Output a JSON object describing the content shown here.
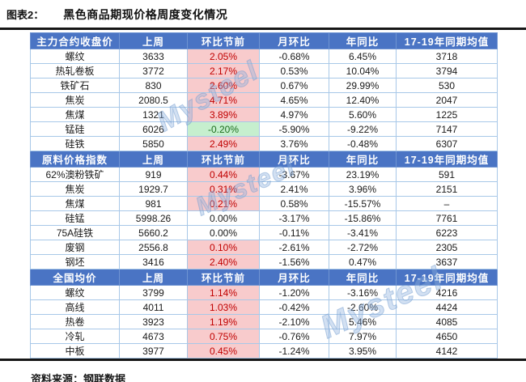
{
  "title": {
    "label": "图表2：",
    "text": "黑色商品期现价格周度变化情况"
  },
  "watermark": {
    "text": "Mysteel"
  },
  "footer": {
    "source_label": "资料来源：钢联数据"
  },
  "colors": {
    "header_bg": "#4a74c4",
    "header_text": "#ffffff",
    "grid_border": "#a8c8e8",
    "increase_bg": "#f8cbcc",
    "increase_text": "#c00000",
    "decrease_bg": "#c6efce",
    "decrease_text": "#1d6e1d",
    "watermark_blue": "#8eb2de",
    "rule_black": "#161616"
  },
  "table": {
    "sections": [
      {
        "header": [
          "主力合约收盘价",
          "上周",
          "环比节前",
          "月环比",
          "年同比",
          "17-19年同期均值"
        ],
        "rows": [
          {
            "cells": [
              "螺纹",
              "3633",
              "2.05%",
              "-0.68%",
              "6.45%",
              "3718"
            ],
            "wow": "up"
          },
          {
            "cells": [
              "热轧卷板",
              "3772",
              "2.17%",
              "0.53%",
              "10.04%",
              "3794"
            ],
            "wow": "up"
          },
          {
            "cells": [
              "铁矿石",
              "830",
              "2.60%",
              "0.67%",
              "29.99%",
              "530"
            ],
            "wow": "up"
          },
          {
            "cells": [
              "焦炭",
              "2080.5",
              "4.71%",
              "4.65%",
              "12.40%",
              "2047"
            ],
            "wow": "up"
          },
          {
            "cells": [
              "焦煤",
              "1321",
              "3.89%",
              "4.97%",
              "5.60%",
              "1225"
            ],
            "wow": "up"
          },
          {
            "cells": [
              "锰硅",
              "6026",
              "-0.20%",
              "-5.90%",
              "-9.22%",
              "7147"
            ],
            "wow": "down"
          },
          {
            "cells": [
              "硅铁",
              "5850",
              "2.49%",
              "3.76%",
              "-0.48%",
              "6307"
            ],
            "wow": "up"
          }
        ]
      },
      {
        "header": [
          "原料价格指数",
          "上周",
          "环比节前",
          "月环比",
          "年同比",
          "17-19年同期均值"
        ],
        "rows": [
          {
            "cells": [
              "62%澳粉铁矿",
              "919",
              "0.44%",
              "-3.67%",
              "23.19%",
              "591"
            ],
            "wow": "up"
          },
          {
            "cells": [
              "焦炭",
              "1929.7",
              "0.31%",
              "2.41%",
              "3.96%",
              "2151"
            ],
            "wow": "up"
          },
          {
            "cells": [
              "焦煤",
              "981",
              "0.21%",
              "0.58%",
              "-15.57%",
              "–"
            ],
            "wow": "up"
          },
          {
            "cells": [
              "硅锰",
              "5998.26",
              "0.00%",
              "-3.17%",
              "-15.86%",
              "7761"
            ],
            "wow": "flat"
          },
          {
            "cells": [
              "75A硅铁",
              "5660.2",
              "0.00%",
              "-0.11%",
              "-3.41%",
              "6223"
            ],
            "wow": "flat"
          },
          {
            "cells": [
              "废钢",
              "2556.8",
              "0.10%",
              "-2.61%",
              "-2.72%",
              "2305"
            ],
            "wow": "up"
          },
          {
            "cells": [
              "钢坯",
              "3416",
              "2.40%",
              "-1.56%",
              "0.47%",
              "3637"
            ],
            "wow": "up"
          }
        ]
      },
      {
        "header": [
          "全国均价",
          "上周",
          "环比节前",
          "月环比",
          "年同比",
          "17-19年同期均值"
        ],
        "rows": [
          {
            "cells": [
              "螺纹",
              "3799",
              "1.14%",
              "-1.20%",
              "-3.16%",
              "4216"
            ],
            "wow": "up"
          },
          {
            "cells": [
              "高线",
              "4011",
              "1.03%",
              "-0.42%",
              "-2.60%",
              "4424"
            ],
            "wow": "up"
          },
          {
            "cells": [
              "热卷",
              "3923",
              "1.19%",
              "-2.10%",
              "5.46%",
              "4085"
            ],
            "wow": "up"
          },
          {
            "cells": [
              "冷轧",
              "4673",
              "0.75%",
              "-0.76%",
              "7.97%",
              "4650"
            ],
            "wow": "up"
          },
          {
            "cells": [
              "中板",
              "3977",
              "0.45%",
              "-1.24%",
              "3.95%",
              "4142"
            ],
            "wow": "up"
          }
        ]
      }
    ]
  }
}
